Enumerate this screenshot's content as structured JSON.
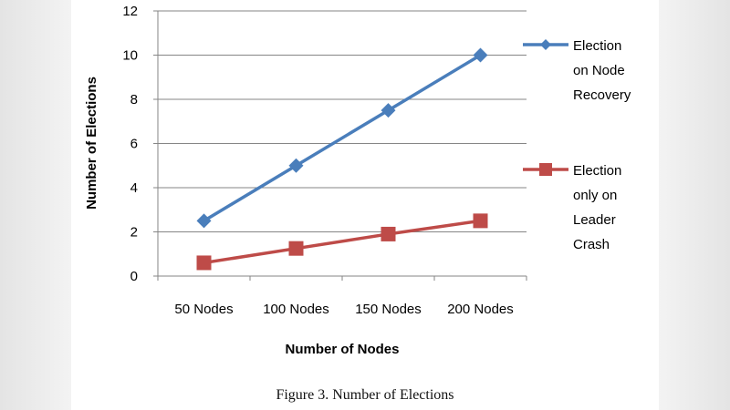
{
  "caption": "Figure 3.  Number of Elections",
  "chart_data": {
    "type": "line",
    "title": "",
    "xlabel": "Number of Nodes",
    "ylabel": "Number of Elections",
    "categories": [
      "50 Nodes",
      "100 Nodes",
      "150 Nodes",
      "200 Nodes"
    ],
    "ylim": [
      0,
      12
    ],
    "yticks": [
      0,
      2,
      4,
      6,
      8,
      10,
      12
    ],
    "grid": true,
    "legend_position": "right",
    "series": [
      {
        "name": "Election on Node Recovery",
        "legend_lines": [
          "Election",
          "on Node",
          "Recovery"
        ],
        "values": [
          2.5,
          5,
          7.5,
          10
        ],
        "color": "#4a7ebb",
        "marker": "diamond"
      },
      {
        "name": "Election only on Leader Crash",
        "legend_lines": [
          "Election",
          "only on",
          "Leader",
          "Crash"
        ],
        "values": [
          0.6,
          1.25,
          1.9,
          2.5
        ],
        "color": "#be4b48",
        "marker": "square"
      }
    ]
  }
}
